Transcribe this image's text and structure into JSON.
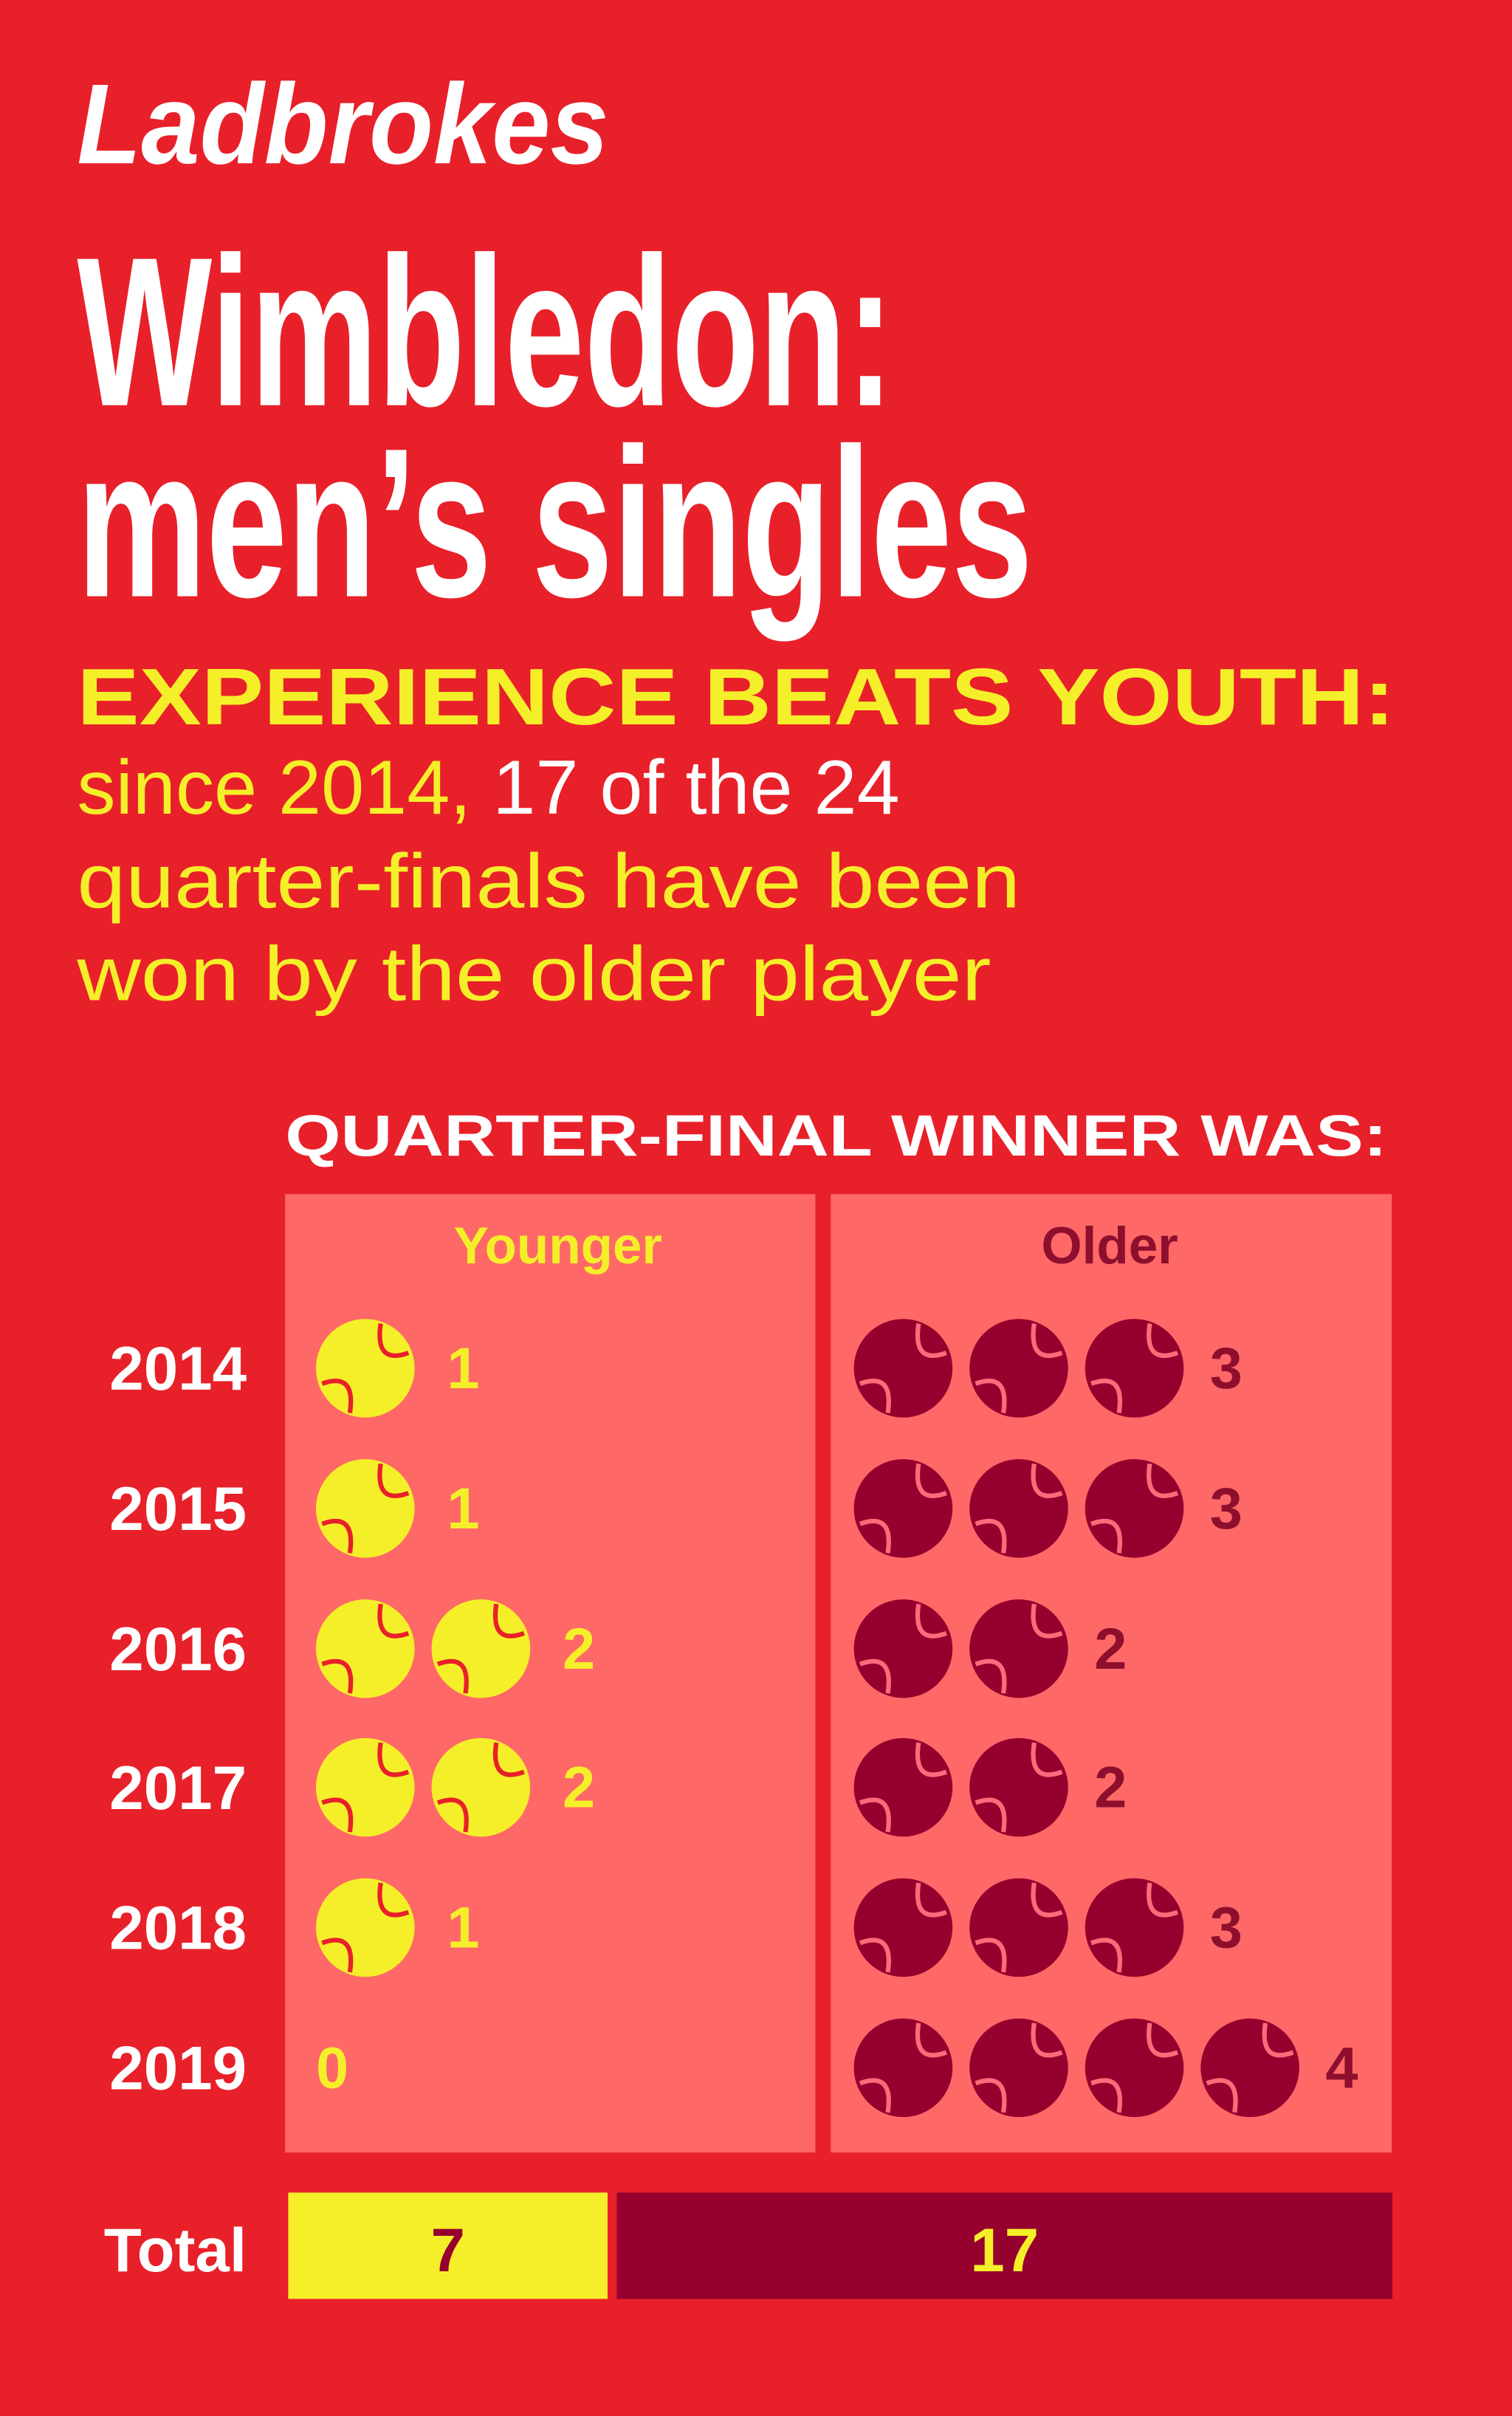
{
  "chart_data": {
    "type": "pictogram",
    "brand": "Ladbrokes",
    "title_lines": [
      "Wimbledon:",
      "men’s singles"
    ],
    "headline": "EXPERIENCE BEATS YOUTH:",
    "subtitle_parts": [
      "since 2014,",
      "17 of the 24",
      "quarter-finals have been",
      "won by the older player"
    ],
    "column_header": "QUARTER-FINAL WINNER WAS:",
    "categories": [
      "2014",
      "2015",
      "2016",
      "2017",
      "2018",
      "2019"
    ],
    "series": [
      {
        "name": "Younger",
        "color": "#f5ef2a",
        "values": [
          1,
          1,
          2,
          2,
          1,
          0
        ],
        "total": 7
      },
      {
        "name": "Older",
        "color": "#96002e",
        "values": [
          3,
          3,
          2,
          2,
          3,
          4
        ],
        "total": 17
      }
    ],
    "total_label": "Total"
  }
}
